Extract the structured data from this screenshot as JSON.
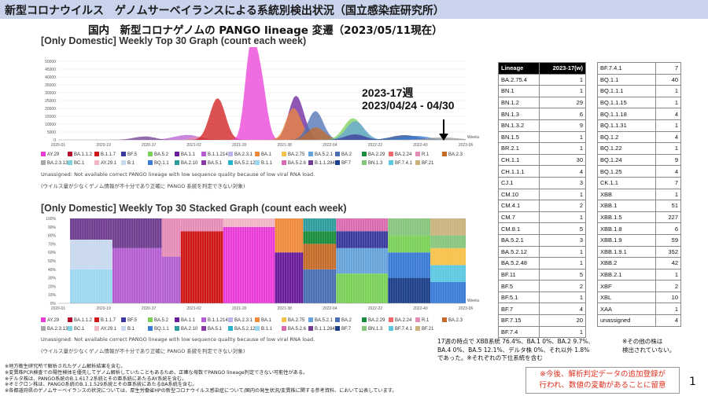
{
  "header": {
    "title": "新型コロナウイルス　ゲノムサーベイランスによる系統別検出状況（国立感染症研究所）",
    "subtitle": "国内　新型コロナゲノムの PANGO lineage 変遷（2023/05/11現在）"
  },
  "legend_entries": [
    "AY.29",
    "BA.1.1.2",
    "B.1.1.7",
    "BF.5",
    "BA.5.2",
    "BA.1.1",
    "B.1.1.214",
    "BA.2.3.1",
    "BA.1",
    "BA.2.75",
    "BA.5.2.1",
    "BA.2",
    "BA.2.29",
    "BA.2.24",
    "R.1",
    "BA.2.3",
    "BA.2.3.13",
    "BC.1",
    "AY.29.1",
    "B.1",
    "BQ.1.1",
    "BA.2.10",
    "BA.5.1",
    "BA.5.2.12",
    "B.1.1",
    "BA.5.2.6",
    "B.1.1.284",
    "BF.7",
    "BN.1.3",
    "BF.7.4.1",
    "BF.21"
  ],
  "legend_colors": [
    "#e93cd6",
    "#b30e2e",
    "#d01818",
    "#3a3a9e",
    "#7bd157",
    "#6a1d9a",
    "#b45fd1",
    "#bcb3e8",
    "#ef8a3c",
    "#f5c24a",
    "#66a3d9",
    "#4a6fb3",
    "#1a8c3c",
    "#f26b6b",
    "#e58cb6",
    "#c56b2a",
    "#a8a8a8",
    "#7fd3e0",
    "#f0b6c4",
    "#c8d8ef",
    "#3a7bd5",
    "#2d9c9c",
    "#8a3aa3",
    "#28b4c8",
    "#9bd7f0",
    "#d96bb0",
    "#6f3c8f",
    "#1c3f8a",
    "#86c57c",
    "#5bc8e0",
    "#c9b27d"
  ],
  "top_chart": {
    "title": "[Only Domestic] Weekly Top 30 Graph (count each week)",
    "note1": "Unassigned: Not available correct PANGO lineage with low sequence quality because of low viral RNA load.",
    "note2": "(ウイルス量が少なくゲノム情報が不十分であり正確に PANGO 系統を判定できない対象)"
  },
  "stacked_chart": {
    "title": "[Only Domestic] Weekly Top 30 Stacked Graph (count each week)",
    "note1": "Unassigned: Not available correct PANGO lineage with low sequence quality because of low viral RNA load.",
    "note2": "(ウイルス量が少なくゲノム情報が不十分であり正確に PANGO 系統を判定できない対象)"
  },
  "annotation": {
    "week": "2023-17週",
    "range": "2023/04/24 - 04/30"
  },
  "table": {
    "header_lineage": "Lineage",
    "header_count": "2023-17(w)",
    "left": [
      [
        "BA.2.75.4",
        "1"
      ],
      [
        "BN.1",
        "1"
      ],
      [
        "BN.1.2",
        "29"
      ],
      [
        "BN.1.3",
        "6"
      ],
      [
        "BN.1.3.2",
        "9"
      ],
      [
        "BN.1.5",
        "1"
      ],
      [
        "BR.2.1",
        "1"
      ],
      [
        "CH.1.1",
        "30"
      ],
      [
        "CH.1.1.1",
        "4"
      ],
      [
        "CJ.1",
        "3"
      ],
      [
        "CM.10",
        "1"
      ],
      [
        "CM.4.1",
        "2"
      ],
      [
        "CM.7",
        "1"
      ],
      [
        "CM.8.1",
        "5"
      ],
      [
        "BA.5.2.1",
        "3"
      ],
      [
        "BA.5.2.12",
        "1"
      ],
      [
        "BA.5.2.48",
        "1"
      ],
      [
        "BF.11",
        "5"
      ],
      [
        "BF.5",
        "2"
      ],
      [
        "BF.5.1",
        "1"
      ],
      [
        "BF.7",
        "4"
      ],
      [
        "BF.7.15",
        "20"
      ],
      [
        "BF.7.4",
        "1"
      ]
    ],
    "right": [
      [
        "BF.7.4.1",
        "7"
      ],
      [
        "BQ.1.1",
        "40"
      ],
      [
        "BQ.1.1.1",
        "1"
      ],
      [
        "BQ.1.1.15",
        "1"
      ],
      [
        "BQ.1.1.18",
        "4"
      ],
      [
        "BQ.1.1.31",
        "1"
      ],
      [
        "BQ.1.2",
        "4"
      ],
      [
        "BQ.1.22",
        "1"
      ],
      [
        "BQ.1.24",
        "9"
      ],
      [
        "BQ.1.25",
        "4"
      ],
      [
        "CK.1.1",
        "7"
      ],
      [
        "XBB",
        "1"
      ],
      [
        "XBB.1",
        "51"
      ],
      [
        "XBB.1.5",
        "227"
      ],
      [
        "XBB.1.8",
        "6"
      ],
      [
        "XBB.1.9",
        "59"
      ],
      [
        "XBB.1.9.1",
        "352"
      ],
      [
        "XBB.2",
        "42"
      ],
      [
        "XBB.2.1",
        "1"
      ],
      [
        "XBF",
        "2"
      ],
      [
        "XBL",
        "10"
      ],
      [
        "XAA",
        "1"
      ],
      [
        "unassigned",
        "4"
      ]
    ]
  },
  "summary": {
    "line1": "17週の時点で XBB系統  76.4%、BA.1  0%、BA.2  9.7%、",
    "line2": "BA.4  0%、BA.5  12.1%、デルタ株  0%、それ以外  1.8%",
    "line3": "であった。※それぞれの下位系統を含む"
  },
  "others_note": {
    "line1": "※その他の株は",
    "line2": "検出されていない。"
  },
  "footnotes": [
    "※地方衛生研究所で解析されたゲノム解析結果を含む。",
    "※変異株PCR検査での陽性検体を優先してゲノム解析していたこともあるため、正確な母数でPANGO lineage判定できない可能性がある。",
    "※デルタ株は、PANGO系統のB.1.617.2系統とその亜系統にあたるAY系統を含む。",
    "※オミクロン株は、PANGO系統のB.1.1.529系統とその亜系統にあたるBA系統を含む。",
    "※各都道府県のゲノムサーベイランスの状況については、厚生労働省HPの新型コロナウイルス感染症について/国内の発生状況/変異株に関する参考資料、において公表しています。"
  ],
  "warning": {
    "line1": "※今後、解析判定データの追加登録が",
    "line2": "行われ、数値の変動があることに留意"
  },
  "page_number": "1",
  "chart_data": [
    {
      "type": "area",
      "title": "[Only Domestic] Weekly Top 30 Graph (count each week)",
      "xlabel": "Weeks",
      "ylabel": "",
      "ylim": [
        0,
        55000
      ],
      "yticks": [
        0,
        5000,
        10000,
        15000,
        20000,
        25000,
        30000,
        35000,
        40000,
        45000,
        50000
      ],
      "x_tick_labels": [
        "2020-01",
        "2020-19",
        "2020-37",
        "2021-02",
        "2021-20",
        "2021-38",
        "2022-04",
        "2022-22",
        "2022-40",
        "2023-06"
      ],
      "week_index_range": [
        0,
        173
      ],
      "series": [
        {
          "name": "B.1.1.214",
          "peaks": [
            [
              50,
              1200
            ],
            [
              56,
              2600
            ]
          ],
          "width": 6
        },
        {
          "name": "B.1.1.284",
          "peaks": [
            [
              33,
              900
            ],
            [
              38,
              1800
            ]
          ],
          "width": 5
        },
        {
          "name": "R.1",
          "peaks": [
            [
              59,
              2200
            ]
          ],
          "width": 4
        },
        {
          "name": "B.1.1.7",
          "peaks": [
            [
              66,
              14000
            ],
            [
              69,
              16500
            ]
          ],
          "width": 4
        },
        {
          "name": "AY.29",
          "peaks": [
            [
              81,
              44000
            ],
            [
              84,
              36000
            ],
            [
              87,
              24000
            ]
          ],
          "width": 3
        },
        {
          "name": "BA.1.1",
          "peaks": [
            [
              100,
              20000
            ],
            [
              103,
              12000
            ]
          ],
          "width": 4
        },
        {
          "name": "BA.1",
          "peaks": [
            [
              99,
              15000
            ],
            [
              102,
              8000
            ]
          ],
          "width": 4
        },
        {
          "name": "BA.2",
          "peaks": [
            [
              108,
              12000
            ],
            [
              111,
              9000
            ]
          ],
          "width": 4
        },
        {
          "name": "BA.2.3",
          "peaks": [
            [
              108,
              6000
            ],
            [
              112,
              4000
            ]
          ],
          "width": 4
        },
        {
          "name": "BA.5.2",
          "peaks": [
            [
              124,
              9000
            ],
            [
              127,
              6000
            ]
          ],
          "width": 5
        },
        {
          "name": "BA.5.2.1",
          "peaks": [
            [
              125,
              8000
            ],
            [
              128,
              5000
            ]
          ],
          "width": 5
        },
        {
          "name": "BF.5",
          "peaks": [
            [
              126,
              3500
            ]
          ],
          "width": 6
        },
        {
          "name": "BF.7",
          "peaks": [
            [
              147,
              3000
            ]
          ],
          "width": 8
        },
        {
          "name": "BQ.1.1",
          "peaks": [
            [
              152,
              2500
            ]
          ],
          "width": 8
        },
        {
          "name": "XBB.1.5",
          "peaks": [
            [
              163,
              1500
            ]
          ],
          "width": 10
        }
      ]
    },
    {
      "type": "bar",
      "stacked": true,
      "title": "[Only Domestic] Weekly Top 30 Stacked Graph (count each week)",
      "xlabel": "Weeks",
      "ylabel": "",
      "ylim": [
        0,
        100
      ],
      "yticks": [
        0,
        10,
        20,
        30,
        40,
        50,
        60,
        70,
        80,
        90,
        100
      ],
      "x_tick_labels": [
        "2020-01",
        "2020-19",
        "2020-37",
        "2021-02",
        "2021-20",
        "2021-38",
        "2022-04",
        "2022-22",
        "2022-40",
        "2023-06"
      ],
      "segments_by_period": [
        {
          "from": 5,
          "to": 23,
          "mix": [
            [
              "B.1.1",
              "40"
            ],
            [
              "B.1",
              "35"
            ],
            [
              "B.1.1.284",
              "25"
            ]
          ]
        },
        {
          "from": 23,
          "to": 44,
          "mix": [
            [
              "B.1.1.214",
              "65"
            ],
            [
              "B.1.1.284",
              "35"
            ]
          ]
        },
        {
          "from": 44,
          "to": 52,
          "mix": [
            [
              "B.1.1.214",
              "55"
            ],
            [
              "R.1",
              "45"
            ]
          ]
        },
        {
          "from": 52,
          "to": 70,
          "mix": [
            [
              "B.1.1.7",
              "85"
            ],
            [
              "R.1",
              "15"
            ]
          ]
        },
        {
          "from": 70,
          "to": 92,
          "mix": [
            [
              "AY.29",
              "90"
            ],
            [
              "AY.29.1",
              "10"
            ]
          ]
        },
        {
          "from": 92,
          "to": 104,
          "mix": [
            [
              "BA.1.1",
              "60"
            ],
            [
              "BA.1",
              "40"
            ]
          ]
        },
        {
          "from": 104,
          "to": 118,
          "mix": [
            [
              "BA.2",
              "40"
            ],
            [
              "BA.2.3",
              "30"
            ],
            [
              "BA.2.29",
              "15"
            ],
            [
              "BA.2.10",
              "15"
            ]
          ]
        },
        {
          "from": 118,
          "to": 140,
          "mix": [
            [
              "BA.5.2",
              "35"
            ],
            [
              "BA.5.2.1",
              "30"
            ],
            [
              "BF.5",
              "20"
            ],
            [
              "BA.5.2.6",
              "15"
            ]
          ]
        },
        {
          "from": 140,
          "to": 158,
          "mix": [
            [
              "BF.7",
              "30"
            ],
            [
              "BQ.1.1",
              "30"
            ],
            [
              "BA.5.2",
              "20"
            ],
            [
              "BN.1.3",
              "20"
            ]
          ]
        },
        {
          "from": 158,
          "to": 173,
          "mix": [
            [
              "BQ.1.1",
              "25"
            ],
            [
              "BF.7.4.1",
              "20"
            ],
            [
              "BA.2.75",
              "20"
            ],
            [
              "BN.1.3",
              "15"
            ],
            [
              "BF.21",
              "20"
            ]
          ]
        }
      ]
    }
  ]
}
